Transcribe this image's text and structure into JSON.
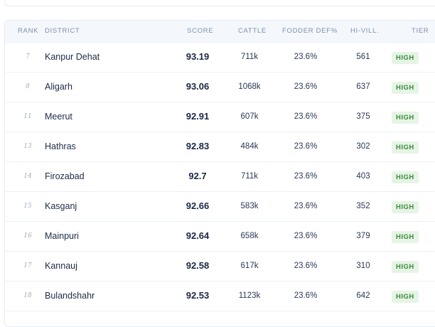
{
  "table": {
    "headers": {
      "rank": "RANK",
      "district": "DISTRICT",
      "score": "SCORE",
      "cattle": "CATTLE",
      "fodder": "FODDER DEF%",
      "hivill": "HI-VILL.",
      "tier": "TIER"
    },
    "rows": [
      {
        "rank": "7",
        "district": "Kanpur Dehat",
        "score": "93.19",
        "cattle": "711k",
        "fodder": "23.6%",
        "hivill": "561",
        "tier": "HIGH"
      },
      {
        "rank": "8",
        "district": "Aligarh",
        "score": "93.06",
        "cattle": "1068k",
        "fodder": "23.6%",
        "hivill": "637",
        "tier": "HIGH"
      },
      {
        "rank": "11",
        "district": "Meerut",
        "score": "92.91",
        "cattle": "607k",
        "fodder": "23.6%",
        "hivill": "375",
        "tier": "HIGH"
      },
      {
        "rank": "13",
        "district": "Hathras",
        "score": "92.83",
        "cattle": "484k",
        "fodder": "23.6%",
        "hivill": "302",
        "tier": "HIGH"
      },
      {
        "rank": "14",
        "district": "Firozabad",
        "score": "92.7",
        "cattle": "711k",
        "fodder": "23.6%",
        "hivill": "403",
        "tier": "HIGH"
      },
      {
        "rank": "15",
        "district": "Kasganj",
        "score": "92.66",
        "cattle": "583k",
        "fodder": "23.6%",
        "hivill": "352",
        "tier": "HIGH"
      },
      {
        "rank": "16",
        "district": "Mainpuri",
        "score": "92.64",
        "cattle": "658k",
        "fodder": "23.6%",
        "hivill": "379",
        "tier": "HIGH"
      },
      {
        "rank": "17",
        "district": "Kannauj",
        "score": "92.58",
        "cattle": "617k",
        "fodder": "23.6%",
        "hivill": "310",
        "tier": "HIGH"
      },
      {
        "rank": "18",
        "district": "Bulandshahr",
        "score": "92.53",
        "cattle": "1123k",
        "fodder": "23.6%",
        "hivill": "642",
        "tier": "HIGH"
      }
    ]
  },
  "colors": {
    "header_bg": "#f4f8fd",
    "tier_high_bg": "#e6f4e5",
    "tier_high_text": "#3b8a3d"
  }
}
